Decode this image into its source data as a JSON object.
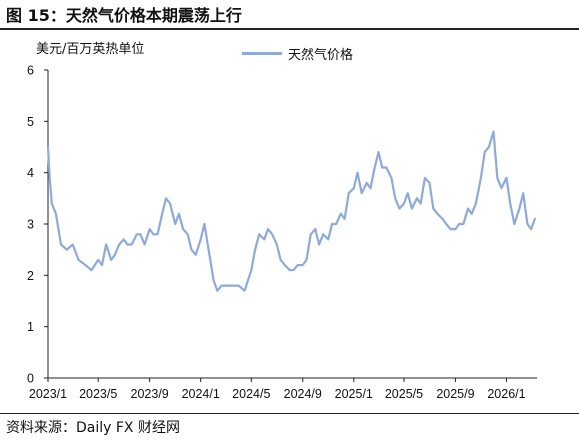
{
  "header": {
    "title": "图 15：天然气价格本期震荡上行"
  },
  "footer": {
    "source": "资料来源：Daily FX 财经网"
  },
  "chart_data": {
    "type": "line",
    "ylabel": "美元/百万英热单位",
    "ylim": [
      0,
      6
    ],
    "yticks": [
      0,
      1,
      2,
      3,
      4,
      5,
      6
    ],
    "xlim": [
      "2023-01-01",
      "2026-03-15"
    ],
    "xtick_labels": [
      "2023/1",
      "2023/5",
      "2023/9",
      "2024/1",
      "2024/5",
      "2024/9",
      "2025/1",
      "2025/5",
      "2025/9",
      "2026/1"
    ],
    "xtick_dates": [
      "2023-01-01",
      "2023-05-01",
      "2023-09-01",
      "2024-01-01",
      "2024-05-01",
      "2024-09-01",
      "2025-01-01",
      "2025-05-01",
      "2025-09-01",
      "2026-01-01"
    ],
    "grid": false,
    "legend": "top-center",
    "series": [
      {
        "name": "天然气价格",
        "color": "#8EA9DB",
        "x": [
          "2023-01-01",
          "2023-01-05",
          "2023-01-10",
          "2023-01-20",
          "2023-02-01",
          "2023-02-15",
          "2023-03-01",
          "2023-03-15",
          "2023-04-01",
          "2023-04-15",
          "2023-05-01",
          "2023-05-10",
          "2023-05-20",
          "2023-06-01",
          "2023-06-10",
          "2023-06-20",
          "2023-07-01",
          "2023-07-10",
          "2023-07-20",
          "2023-08-01",
          "2023-08-10",
          "2023-08-20",
          "2023-09-01",
          "2023-09-10",
          "2023-09-20",
          "2023-10-01",
          "2023-10-10",
          "2023-10-20",
          "2023-11-01",
          "2023-11-10",
          "2023-11-20",
          "2023-12-01",
          "2023-12-10",
          "2023-12-20",
          "2024-01-01",
          "2024-01-10",
          "2024-01-20",
          "2024-02-01",
          "2024-02-10",
          "2024-02-20",
          "2024-03-01",
          "2024-03-15",
          "2024-04-01",
          "2024-04-15",
          "2024-05-01",
          "2024-05-10",
          "2024-05-20",
          "2024-06-01",
          "2024-06-10",
          "2024-06-20",
          "2024-07-01",
          "2024-07-10",
          "2024-07-20",
          "2024-08-01",
          "2024-08-10",
          "2024-08-20",
          "2024-09-01",
          "2024-09-10",
          "2024-09-20",
          "2024-10-01",
          "2024-10-10",
          "2024-10-20",
          "2024-11-01",
          "2024-11-10",
          "2024-11-20",
          "2024-12-01",
          "2024-12-10",
          "2024-12-20",
          "2025-01-01",
          "2025-01-10",
          "2025-01-20",
          "2025-02-01",
          "2025-02-10",
          "2025-02-20",
          "2025-03-01",
          "2025-03-10",
          "2025-03-20",
          "2025-04-01",
          "2025-04-10",
          "2025-04-20",
          "2025-05-01",
          "2025-05-10",
          "2025-05-20",
          "2025-06-01",
          "2025-06-10",
          "2025-06-20",
          "2025-07-01",
          "2025-07-10",
          "2025-07-20",
          "2025-08-01",
          "2025-08-10",
          "2025-08-20",
          "2025-09-01",
          "2025-09-10",
          "2025-09-20",
          "2025-10-01",
          "2025-10-10",
          "2025-10-20",
          "2025-11-01",
          "2025-11-10",
          "2025-11-20",
          "2025-12-01",
          "2025-12-10",
          "2025-12-20",
          "2026-01-01",
          "2026-01-10",
          "2026-01-20",
          "2026-02-01",
          "2026-02-10",
          "2026-02-20",
          "2026-03-01",
          "2026-03-10"
        ],
        "values": [
          4.5,
          3.9,
          3.4,
          3.2,
          2.6,
          2.5,
          2.6,
          2.3,
          2.2,
          2.1,
          2.3,
          2.2,
          2.6,
          2.3,
          2.4,
          2.6,
          2.7,
          2.6,
          2.6,
          2.8,
          2.8,
          2.6,
          2.9,
          2.8,
          2.8,
          3.2,
          3.5,
          3.4,
          3.0,
          3.2,
          2.9,
          2.8,
          2.5,
          2.4,
          2.7,
          3.0,
          2.5,
          1.9,
          1.7,
          1.8,
          1.8,
          1.8,
          1.8,
          1.7,
          2.1,
          2.5,
          2.8,
          2.7,
          2.9,
          2.8,
          2.6,
          2.3,
          2.2,
          2.1,
          2.1,
          2.2,
          2.2,
          2.3,
          2.8,
          2.9,
          2.6,
          2.8,
          2.7,
          3.0,
          3.0,
          3.2,
          3.1,
          3.6,
          3.7,
          4.0,
          3.6,
          3.8,
          3.7,
          4.1,
          4.4,
          4.1,
          4.1,
          3.9,
          3.5,
          3.3,
          3.4,
          3.6,
          3.3,
          3.5,
          3.4,
          3.9,
          3.8,
          3.3,
          3.2,
          3.1,
          3.0,
          2.9,
          2.9,
          3.0,
          3.0,
          3.3,
          3.2,
          3.4,
          3.9,
          4.4,
          4.5,
          4.8,
          3.9,
          3.7,
          3.9,
          3.4,
          3.0,
          3.3,
          3.6,
          3.0,
          2.9,
          3.1
        ]
      }
    ]
  }
}
